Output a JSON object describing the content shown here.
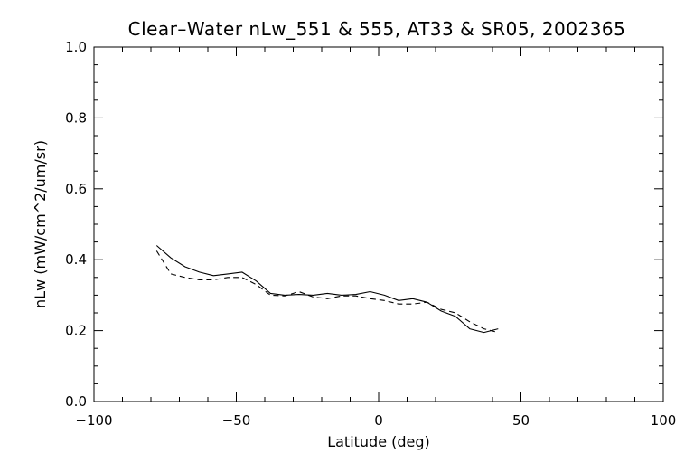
{
  "chart_data": {
    "type": "line",
    "title": "Clear–Water nLw_551 & 555, AT33 & SR05, 2002365",
    "xlabel": "Latitude (deg)",
    "ylabel": "nLw (mW/cm^2/um/sr)",
    "xlim": [
      -100,
      100
    ],
    "ylim": [
      0.0,
      1.0
    ],
    "x_ticks": [
      -100,
      -50,
      0,
      50,
      100
    ],
    "x_tick_labels": [
      "−100",
      "−50",
      "0",
      "50",
      "100"
    ],
    "y_ticks": [
      0.0,
      0.2,
      0.4,
      0.6,
      0.8,
      1.0
    ],
    "y_tick_labels": [
      "0.0",
      "0.2",
      "0.4",
      "0.6",
      "0.8",
      "1.0"
    ],
    "grid": false,
    "series": [
      {
        "style": "solid",
        "x": [
          -78,
          -73,
          -68,
          -63,
          -58,
          -53,
          -48,
          -43,
          -38,
          -33,
          -28,
          -23,
          -18,
          -13,
          -8,
          -3,
          2,
          7,
          12,
          17,
          22,
          27,
          32,
          37,
          42
        ],
        "y": [
          0.44,
          0.405,
          0.38,
          0.365,
          0.355,
          0.36,
          0.365,
          0.34,
          0.305,
          0.3,
          0.302,
          0.3,
          0.305,
          0.3,
          0.302,
          0.31,
          0.3,
          0.285,
          0.29,
          0.28,
          0.255,
          0.24,
          0.205,
          0.195,
          0.205
        ]
      },
      {
        "style": "dashed",
        "x": [
          -78,
          -73,
          -68,
          -63,
          -58,
          -53,
          -48,
          -43,
          -38,
          -33,
          -28,
          -23,
          -18,
          -13,
          -8,
          -3,
          2,
          7,
          12,
          17,
          22,
          27,
          32,
          37,
          42
        ],
        "y": [
          0.425,
          0.36,
          0.35,
          0.343,
          0.343,
          0.35,
          0.35,
          0.33,
          0.3,
          0.298,
          0.31,
          0.295,
          0.29,
          0.298,
          0.298,
          0.29,
          0.285,
          0.275,
          0.275,
          0.28,
          0.26,
          0.25,
          0.225,
          0.205,
          0.195
        ]
      }
    ]
  }
}
